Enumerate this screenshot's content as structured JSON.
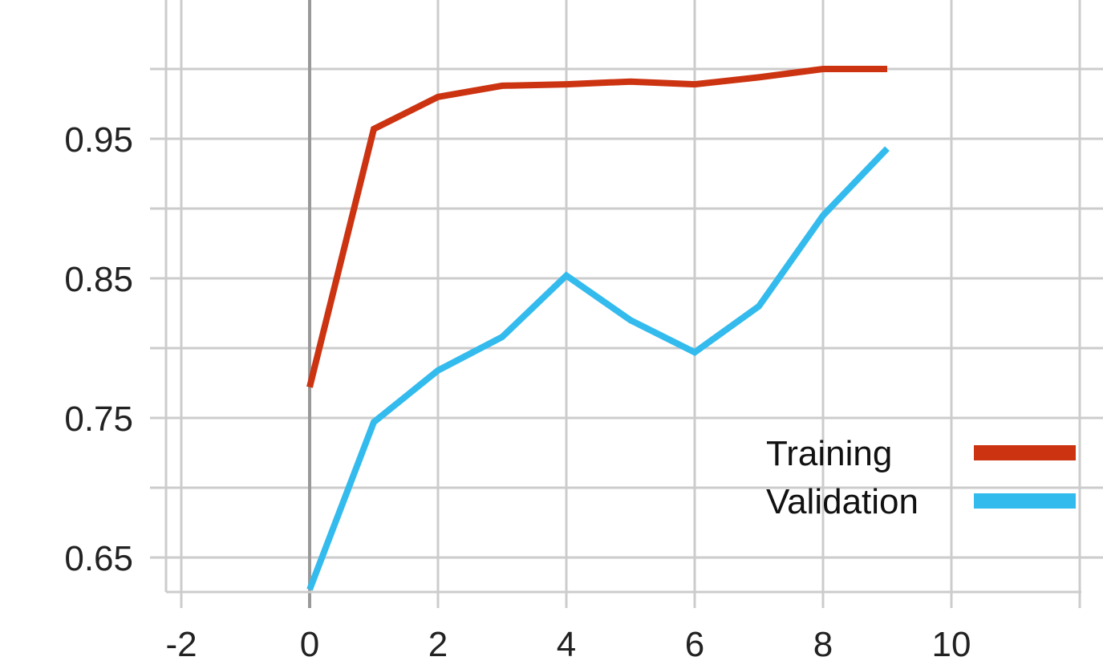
{
  "chart_data": {
    "type": "line",
    "title": "",
    "xlabel": "",
    "ylabel": "",
    "xlim": [
      -2,
      12
    ],
    "ylim": [
      0.65,
      1.0
    ],
    "x_ticks": [
      -2,
      0,
      2,
      4,
      6,
      8,
      10
    ],
    "x_tick_labels": [
      "-2",
      "0",
      "2",
      "4",
      "6",
      "8",
      "10"
    ],
    "x_gridlines": [
      -2,
      0,
      2,
      4,
      6,
      8,
      10,
      12
    ],
    "y_ticks": [
      0.65,
      0.75,
      0.85,
      0.95
    ],
    "y_tick_labels": [
      "0.65",
      "0.75",
      "0.85",
      "0.95"
    ],
    "y_gridlines": [
      0.65,
      0.7,
      0.75,
      0.8,
      0.85,
      0.9,
      0.95,
      1.0
    ],
    "grid": true,
    "legend_position": "bottom-right",
    "x": [
      0,
      1,
      2,
      3,
      4,
      5,
      6,
      7,
      8,
      9
    ],
    "series": [
      {
        "name": "Training",
        "color": "#cc3311",
        "values": [
          0.772,
          0.957,
          0.98,
          0.988,
          0.989,
          0.991,
          0.989,
          0.994,
          1.0,
          1.0
        ]
      },
      {
        "name": "Validation",
        "color": "#33bbee",
        "values": [
          0.627,
          0.747,
          0.784,
          0.808,
          0.852,
          0.82,
          0.797,
          0.83,
          0.895,
          0.943
        ]
      }
    ]
  }
}
